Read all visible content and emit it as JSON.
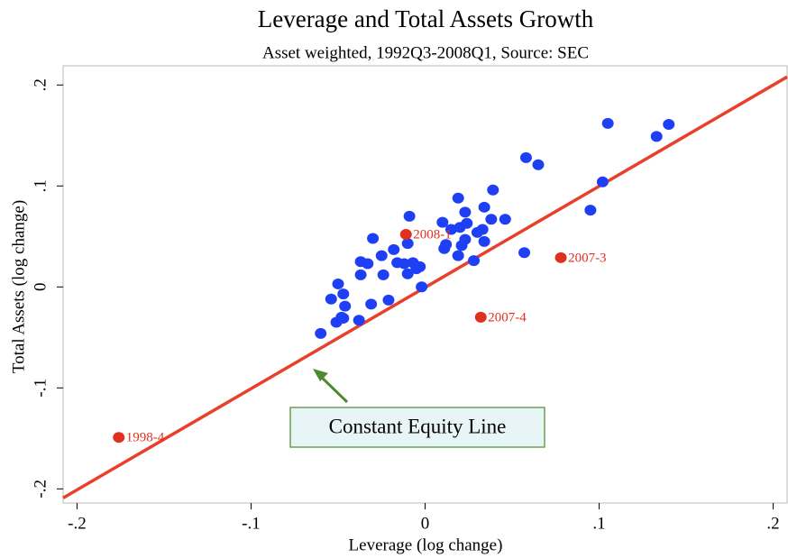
{
  "chart_data": {
    "type": "scatter",
    "title": "Leverage and Total Assets Growth",
    "subtitle": "Asset weighted, 1992Q3-2008Q1, Source: SEC",
    "x_label": "Leverage (log change)",
    "y_label": "Total Assets (log change)",
    "xlim": [
      -0.208,
      0.208
    ],
    "ylim": [
      -0.214,
      0.219
    ],
    "xticks": [
      {
        "value": -0.2,
        "label": "-.2"
      },
      {
        "value": -0.1,
        "label": "-.1"
      },
      0,
      {
        "value": 0.1,
        "label": ".1"
      },
      {
        "value": 0.2,
        "label": ".2"
      }
    ],
    "yticks": [
      {
        "value": -0.2,
        "label": "-.2"
      },
      {
        "value": -0.1,
        "label": "-.1"
      },
      0,
      {
        "value": 0.1,
        "label": ".1"
      },
      {
        "value": 0.2,
        "label": ".2"
      }
    ],
    "series": [
      {
        "color": "#1f3ff5",
        "x": [
          -0.06,
          -0.054,
          -0.05,
          -0.047,
          -0.046,
          -0.051,
          -0.048,
          -0.047,
          -0.038,
          -0.037,
          -0.037,
          -0.031,
          -0.03,
          -0.033,
          -0.025,
          -0.024,
          -0.021,
          -0.018,
          -0.016,
          -0.012,
          -0.01,
          -0.009,
          -0.01,
          -0.007,
          -0.005,
          -0.003,
          -0.002,
          0.01,
          0.011,
          0.012,
          0.015,
          0.019,
          0.02,
          0.019,
          0.021,
          0.023,
          0.023,
          0.024,
          0.028,
          0.03,
          0.033,
          0.034,
          0.034,
          0.038,
          0.039,
          0.046,
          0.057,
          0.058,
          0.065,
          0.095,
          0.102,
          0.105,
          0.133,
          0.14
        ],
        "values": [
          -0.046,
          -0.012,
          0.003,
          -0.007,
          -0.019,
          -0.035,
          -0.03,
          -0.031,
          -0.033,
          0.012,
          0.025,
          -0.017,
          0.048,
          0.023,
          0.031,
          0.012,
          -0.013,
          0.037,
          0.024,
          0.023,
          0.043,
          0.07,
          0.013,
          0.024,
          0.018,
          0.02,
          0.0,
          0.064,
          0.038,
          0.042,
          0.057,
          0.088,
          0.059,
          0.031,
          0.041,
          0.074,
          0.047,
          0.063,
          0.026,
          0.054,
          0.057,
          0.079,
          0.045,
          0.067,
          0.096,
          0.067,
          0.034,
          0.128,
          0.121,
          0.076,
          0.104,
          0.162,
          0.149,
          0.161
        ]
      },
      {
        "color": "#e0301e",
        "x": [
          -0.176,
          -0.011,
          0.078,
          0.032
        ],
        "values": [
          -0.149,
          0.052,
          0.029,
          -0.03
        ],
        "labels": [
          "1998-4",
          "2008-1",
          "2007-3",
          "2007-4"
        ]
      }
    ],
    "reference_line": {
      "color": "#e8402a",
      "x": [
        -0.208,
        0.208
      ],
      "y": [
        -0.209,
        0.208
      ]
    },
    "annotation": "Constant Equity Line"
  }
}
